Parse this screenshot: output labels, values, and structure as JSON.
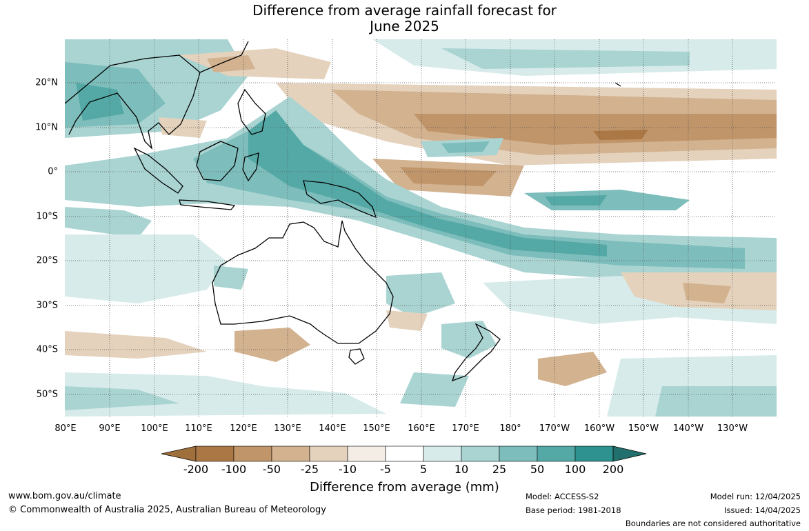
{
  "title_line1": "Difference from average rainfall forecast for",
  "title_line2": "June 2025",
  "longitude_labels": [
    "80°E",
    "90°E",
    "100°E",
    "110°E",
    "120°E",
    "130°E",
    "140°E",
    "150°E",
    "160°E",
    "170°E",
    "180°",
    "170°W",
    "160°W",
    "150°W",
    "140°W",
    "130°W"
  ],
  "latitude_labels": [
    "20°N",
    "10°N",
    "0°",
    "10°S",
    "20°S",
    "30°S",
    "40°S",
    "50°S"
  ],
  "colorbar": {
    "title": "Difference from average (mm)",
    "tick_labels": [
      "-200",
      "-100",
      "-50",
      "-25",
      "-10",
      "-5",
      "5",
      "10",
      "25",
      "50",
      "100",
      "200"
    ],
    "colors": [
      "#a0703c",
      "#ab7845",
      "#c0956a",
      "#d2b28f",
      "#e4d2bd",
      "#f3ede6",
      "#ffffff",
      "#d6ebea",
      "#a9d4d2",
      "#7dbdbb",
      "#54a9a6",
      "#2e9390",
      "#22706d"
    ]
  },
  "footer": {
    "website": "www.bom.gov.au/climate",
    "copyright": "© Commonwealth of Australia 2025, Australian Bureau of Meteorology",
    "model": "Model: ACCESS-S2",
    "base_period": "Base period: 1981-2018",
    "model_run": "Model run: 12/04/2025",
    "issued": "Issued: 14/04/2025",
    "disclaimer": "Boundaries are not considered authoritative"
  }
}
